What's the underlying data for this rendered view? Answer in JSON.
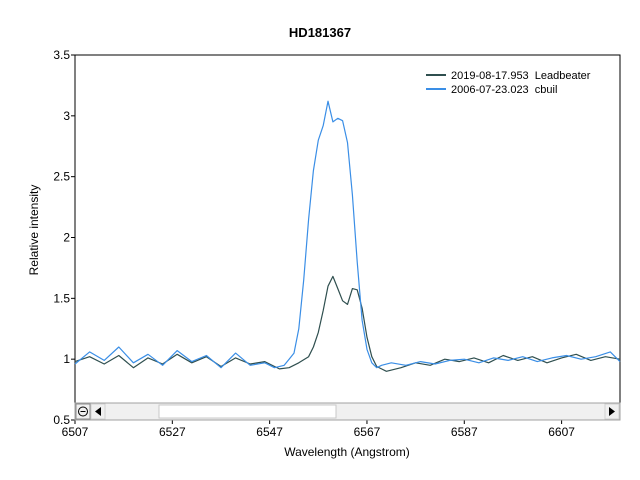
{
  "chart_data": {
    "type": "line",
    "title": "HD181367",
    "xlabel": "Wavelength (Angstrom)",
    "ylabel": "Relative intensity",
    "xlim": [
      6507,
      6619
    ],
    "ylim": [
      0.5,
      3.5
    ],
    "xticks": [
      "6507",
      "6527",
      "6547",
      "6567",
      "6587",
      "6607"
    ],
    "yticks": [
      "0.5",
      "1",
      "1.5",
      "2",
      "2.5",
      "3",
      "3.5"
    ],
    "grid": false,
    "legend_position": "top-right",
    "series": [
      {
        "name": "2019-08-17.953  Leadbeater",
        "color": "#2f4f4f",
        "x": [
          6507,
          6510,
          6513,
          6516,
          6519,
          6522,
          6525,
          6528,
          6531,
          6534,
          6537,
          6540,
          6543,
          6546,
          6549,
          6551,
          6553,
          6555,
          6556,
          6557,
          6558,
          6559,
          6560,
          6561,
          6562,
          6563,
          6564,
          6565,
          6566,
          6567,
          6568,
          6569,
          6571,
          6574,
          6577,
          6580,
          6583,
          6586,
          6589,
          6592,
          6595,
          6598,
          6601,
          6604,
          6607,
          6610,
          6613,
          6616,
          6619
        ],
        "values": [
          0.98,
          1.02,
          0.96,
          1.03,
          0.93,
          1.01,
          0.96,
          1.04,
          0.97,
          1.02,
          0.94,
          1.01,
          0.96,
          0.98,
          0.92,
          0.93,
          0.97,
          1.02,
          1.1,
          1.22,
          1.4,
          1.6,
          1.68,
          1.58,
          1.48,
          1.45,
          1.58,
          1.57,
          1.42,
          1.18,
          1.02,
          0.94,
          0.9,
          0.93,
          0.97,
          0.95,
          1.0,
          0.98,
          1.01,
          0.97,
          1.03,
          0.99,
          1.02,
          0.97,
          1.01,
          1.04,
          0.99,
          1.02,
          1.0
        ]
      },
      {
        "name": "2006-07-23.023  cbuil",
        "color": "#3a8ee6",
        "x": [
          6507,
          6510,
          6513,
          6516,
          6519,
          6522,
          6525,
          6528,
          6531,
          6534,
          6537,
          6540,
          6543,
          6546,
          6548,
          6550,
          6551,
          6552,
          6553,
          6554,
          6555,
          6556,
          6557,
          6558,
          6559,
          6560,
          6561,
          6562,
          6563,
          6564,
          6565,
          6566,
          6567,
          6568,
          6569,
          6570,
          6572,
          6575,
          6578,
          6581,
          6584,
          6587,
          6590,
          6593,
          6596,
          6599,
          6602,
          6605,
          6608,
          6611,
          6614,
          6617,
          6619
        ],
        "values": [
          0.96,
          1.06,
          0.99,
          1.1,
          0.97,
          1.04,
          0.95,
          1.07,
          0.98,
          1.03,
          0.93,
          1.05,
          0.95,
          0.97,
          0.93,
          0.95,
          1.0,
          1.05,
          1.25,
          1.65,
          2.15,
          2.55,
          2.8,
          2.92,
          3.12,
          2.95,
          2.98,
          2.96,
          2.78,
          2.35,
          1.8,
          1.32,
          1.08,
          0.97,
          0.93,
          0.95,
          0.97,
          0.95,
          0.98,
          0.96,
          0.99,
          1.0,
          0.97,
          1.01,
          0.99,
          1.02,
          0.98,
          1.01,
          1.03,
          1.0,
          1.02,
          1.06,
          0.98
        ]
      }
    ]
  }
}
